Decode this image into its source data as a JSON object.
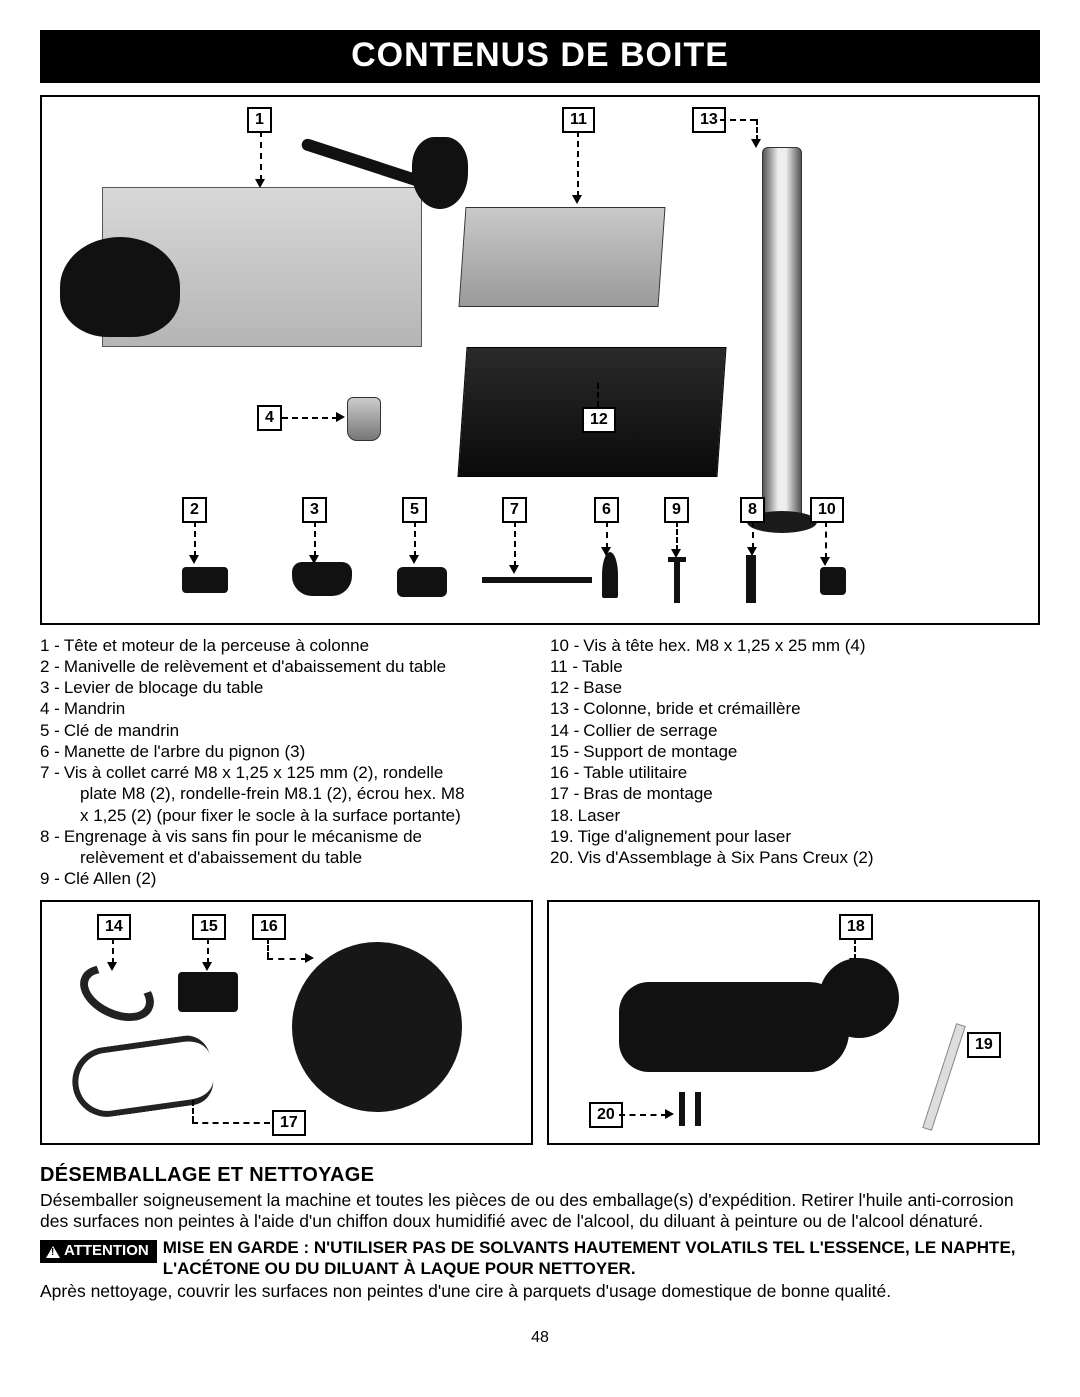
{
  "colors": {
    "bg": "#ffffff",
    "fg": "#000000"
  },
  "title": "CONTENUS DE BOITE",
  "callouts_main": {
    "c1": "1",
    "c11": "11",
    "c13": "13",
    "c4": "4",
    "c12": "12",
    "c2": "2",
    "c3": "3",
    "c5": "5",
    "c7": "7",
    "c6": "6",
    "c9": "9",
    "c8": "8",
    "c10": "10"
  },
  "callouts_small_left": {
    "c14": "14",
    "c15": "15",
    "c16": "16",
    "c17": "17"
  },
  "callouts_small_right": {
    "c18": "18",
    "c19": "19",
    "c20": "20"
  },
  "legend_left": [
    {
      "n": "1 -",
      "t": "Tête et moteur de la perceuse à colonne"
    },
    {
      "n": "2 -",
      "t": "Manivelle de relèvement et d'abaissement du table"
    },
    {
      "n": "3 -",
      "t": "Levier de blocage du table"
    },
    {
      "n": "4 -",
      "t": "Mandrin"
    },
    {
      "n": "5 -",
      "t": "Clé de mandrin"
    },
    {
      "n": "6 -",
      "t": "Manette de l'arbre du pignon (3)"
    },
    {
      "n": "7 -",
      "t": "Vis à collet carré M8 x 1,25 x 125 mm (2), rondelle"
    },
    {
      "sub": true,
      "t": "plate M8 (2), rondelle-frein M8.1 (2), écrou hex. M8"
    },
    {
      "sub": true,
      "t": "x 1,25 (2) (pour fixer le socle à la surface portante)"
    },
    {
      "n": "8 -",
      "t": "Engrenage à vis sans fin pour le mécanisme de"
    },
    {
      "sub": true,
      "t": "relèvement et d'abaissement du table"
    },
    {
      "n": "9 -",
      "t": "Clé Allen (2)"
    }
  ],
  "legend_right": [
    {
      "n": "10 -",
      "t": "Vis à tête hex. M8 x 1,25 x 25 mm (4)"
    },
    {
      "n": "11 -",
      "t": "Table"
    },
    {
      "n": "12 -",
      "t": "Base"
    },
    {
      "n": "13 -",
      "t": "Colonne, bride et crémaillère"
    },
    {
      "n": "14 -",
      "t": "Collier de serrage"
    },
    {
      "n": "15 -",
      "t": "Support de montage"
    },
    {
      "n": "16 -",
      "t": "Table utilitaire"
    },
    {
      "n": "17 -",
      "t": "Bras de montage"
    },
    {
      "n": "18.",
      "t": "Laser"
    },
    {
      "n": "19.",
      "t": "Tige d'alignement pour laser"
    },
    {
      "n": "20.",
      "t": "Vis d'Assemblage à Six Pans Creux (2)"
    }
  ],
  "section_heading": "DÉSEMBALLAGE ET NETTOYAGE",
  "para1": "Désemballer soigneusement la machine et toutes les pièces de ou des emballage(s) d'expédition. Retirer l'huile anti-corrosion des surfaces non peintes à l'aide d'un chiffon doux humidifié avec de l'alcool, du diluant à peinture ou de l'alcool dénaturé.",
  "warning_badge": "ATTENTION",
  "warning_text": "MISE EN GARDE : N'UTILISER PAS DE SOLVANTS HAUTEMENT VOLATILS TEL L'ESSENCE, LE NAPHTE, L'ACÉTONE OU DU DILUANT À LAQUE POUR NETTOYER.",
  "para2": "Après nettoyage, couvrir les surfaces non peintes d'une cire à parquets d'usage domestique de bonne qualité.",
  "page_number": "48"
}
